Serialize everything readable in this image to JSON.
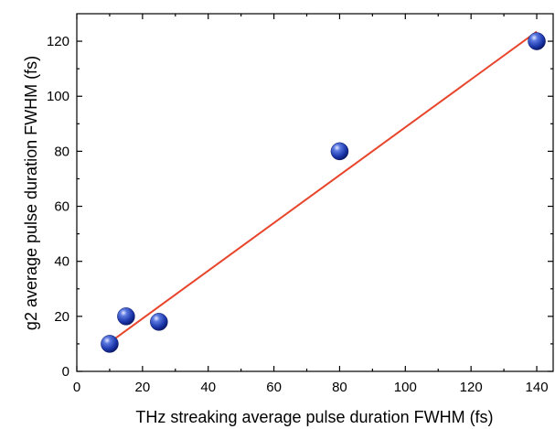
{
  "chart_data": {
    "type": "scatter",
    "title": "",
    "xlabel": "THz streaking average pulse duration FWHM (fs)",
    "ylabel": "g2 average pulse duration FWHM (fs)",
    "xlim": [
      0,
      145
    ],
    "ylim": [
      0,
      130
    ],
    "x_ticks": [
      0,
      20,
      40,
      60,
      80,
      100,
      120,
      140
    ],
    "y_ticks": [
      0,
      20,
      40,
      60,
      80,
      100,
      120
    ],
    "series": [
      {
        "type": "scatter",
        "x": [
          10,
          15,
          25,
          80,
          140
        ],
        "y": [
          10,
          20,
          18,
          80,
          120
        ],
        "color": "#1a35a8"
      },
      {
        "type": "line",
        "x": [
          10,
          140
        ],
        "y": [
          10.5,
          123.5
        ],
        "color": "#e8452c"
      }
    ],
    "grid": false,
    "legend": "none"
  }
}
